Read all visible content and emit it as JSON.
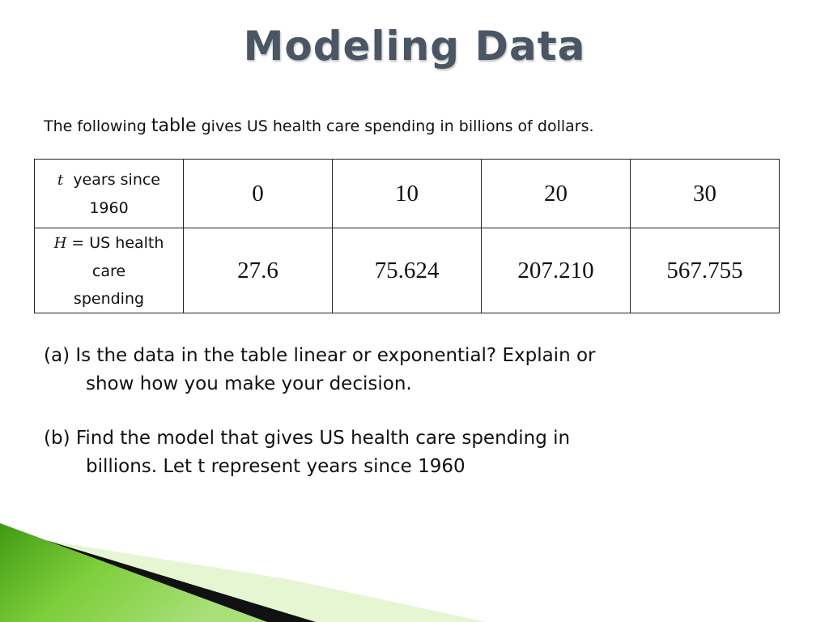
{
  "slide": {
    "title": "Modeling Data",
    "intro_before": "The following",
    "intro_word": "table",
    "intro_after": "gives US health care spending in billions of dollars."
  },
  "table": {
    "row_t": {
      "var": "t",
      "label_line1": "years since",
      "label_line2": "1960",
      "values": [
        "0",
        "10",
        "20",
        "30"
      ]
    },
    "row_h": {
      "var": "H",
      "eq": " = US health",
      "label_line2": "care",
      "label_line3": "spending",
      "values": [
        "27.6",
        "75.624",
        "207.210",
        "567.755"
      ]
    }
  },
  "questions": {
    "a": {
      "line1": "(a)  Is the data in the table linear or exponential?  Explain or",
      "line2": "show how   you make your decision."
    },
    "b": {
      "line1": "(b)  Find the model that gives US health care spending in",
      "line2": "billions.  Let t represent years since 1960"
    }
  },
  "theme": {
    "title_color": "#4a5663",
    "green_dark": "#3f9a12",
    "green_light": "#a9e07a",
    "stripe_light": "#e6f5d2"
  }
}
